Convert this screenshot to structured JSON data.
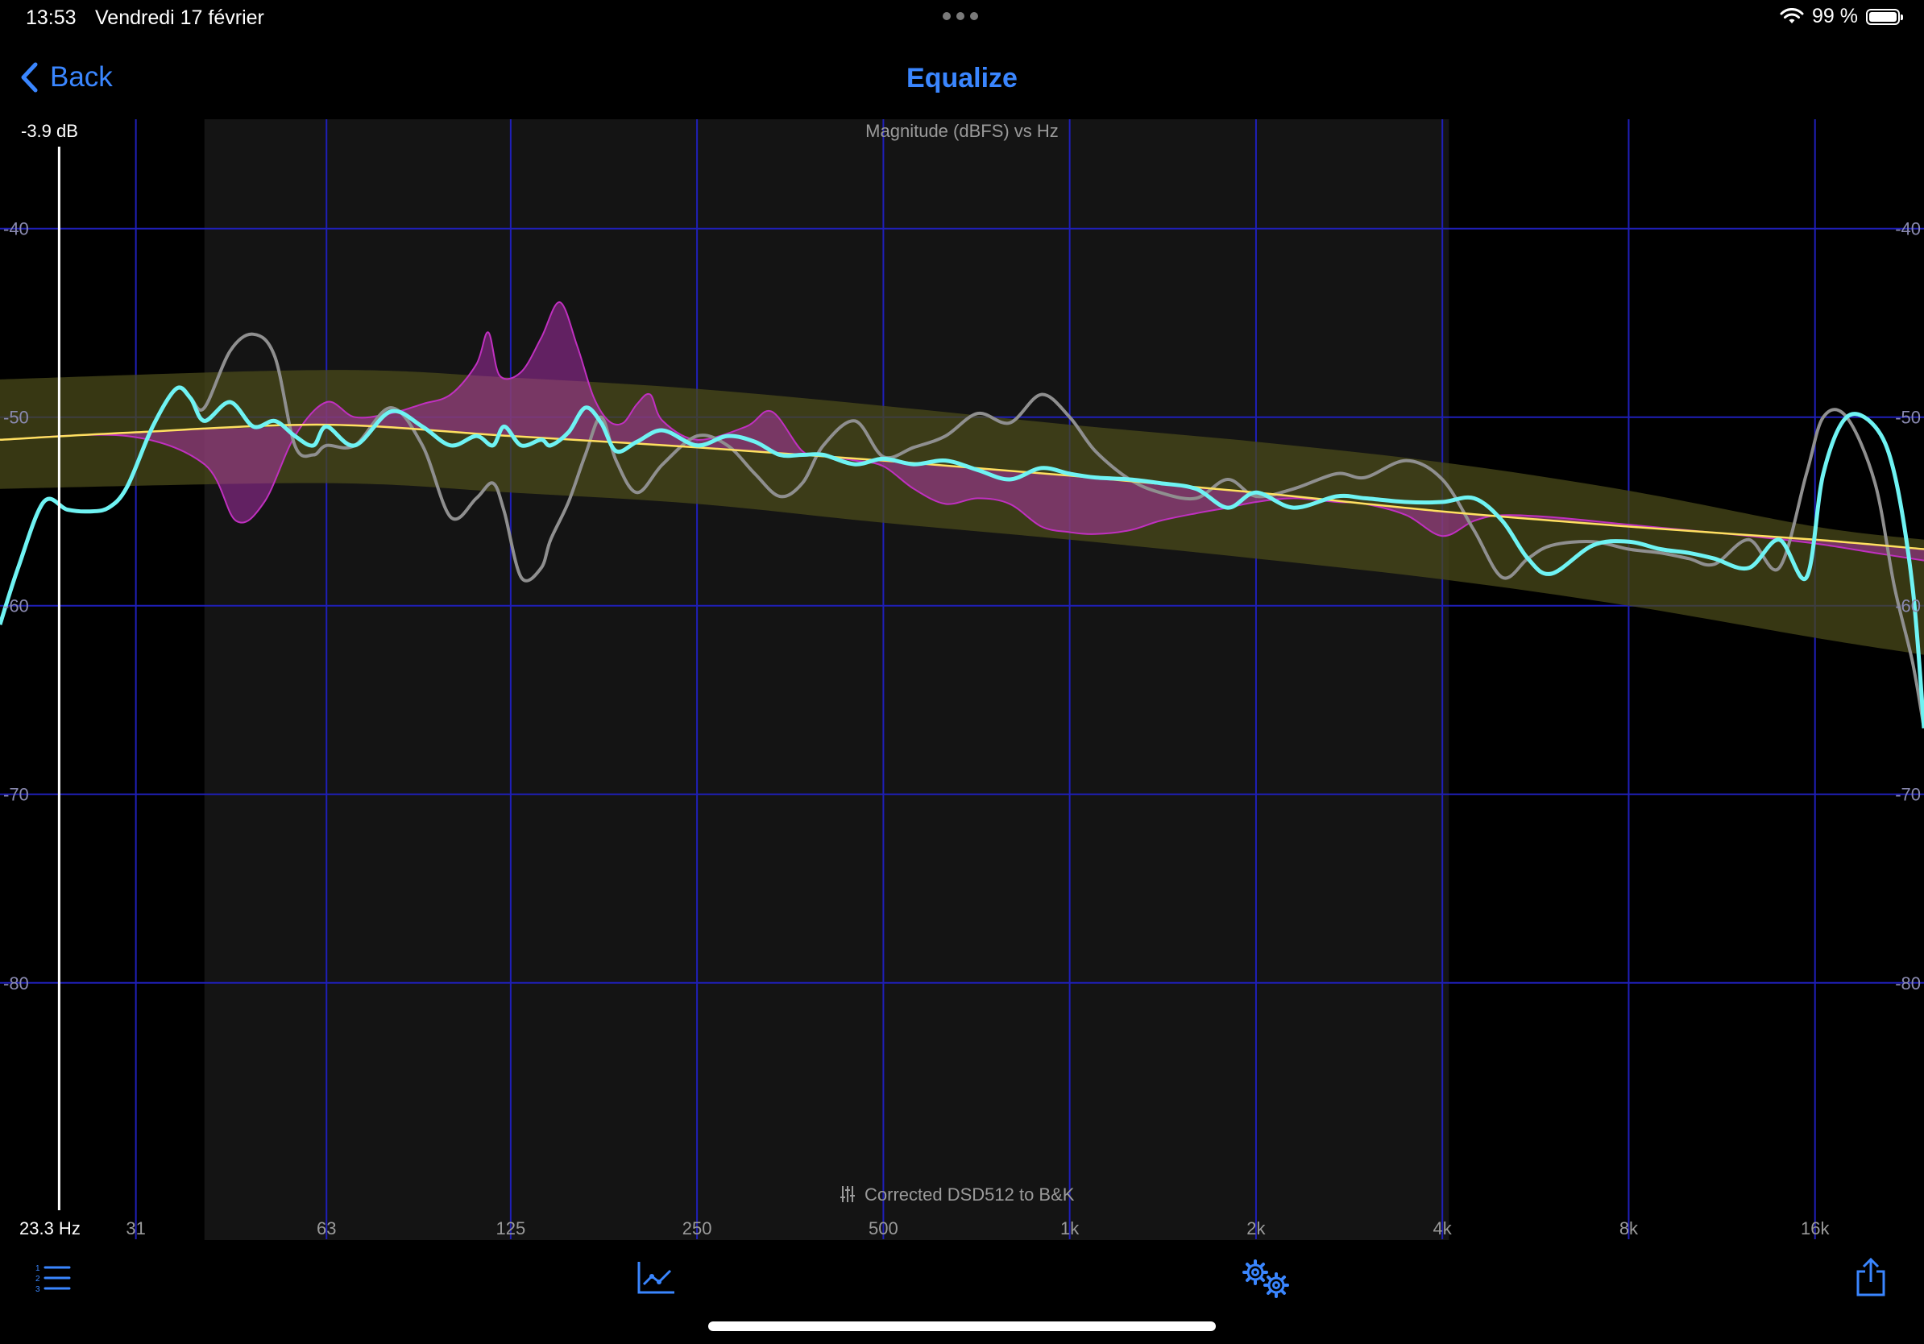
{
  "status_bar": {
    "time": "13:53",
    "date": "Vendredi 17 février",
    "battery": "99 %",
    "battery_level": 0.99
  },
  "nav": {
    "back_label": "Back",
    "title": "Equalize"
  },
  "readouts": {
    "level": "-3.9 dB",
    "frequency": "23.3 Hz"
  },
  "chart_data": {
    "type": "line",
    "title": "Magnitude (dBFS) vs Hz",
    "footer_label": "Corrected DSD512 to B&K",
    "x_scale": "log",
    "xlim": [
      18.7,
      24000
    ],
    "ylim": [
      -93.6,
      -34.2
    ],
    "x_ticks": [
      {
        "value": 31,
        "label": "31"
      },
      {
        "value": 63,
        "label": "63"
      },
      {
        "value": 125,
        "label": "125"
      },
      {
        "value": 250,
        "label": "250"
      },
      {
        "value": 500,
        "label": "500"
      },
      {
        "value": 1000,
        "label": "1k"
      },
      {
        "value": 2000,
        "label": "2k"
      },
      {
        "value": 4000,
        "label": "4k"
      },
      {
        "value": 8000,
        "label": "8k"
      },
      {
        "value": 16000,
        "label": "16k"
      }
    ],
    "y_ticks": [
      {
        "value": -40,
        "label": "-40"
      },
      {
        "value": -50,
        "label": "-50"
      },
      {
        "value": -60,
        "label": "-60"
      },
      {
        "value": -70,
        "label": "-70"
      },
      {
        "value": -80,
        "label": "-80"
      }
    ],
    "grid": true,
    "shaded_range_hz": [
      40,
      4100
    ],
    "colors": {
      "grid": "#1f1fb8",
      "measured": "#8f8f8f",
      "corrected": "#6ff3f3",
      "eq": "#c030c0",
      "target": "#ffe060",
      "tolerance": "#4a4a1a",
      "shade": "#141414",
      "axis_text": "#8a8ab0"
    },
    "tolerance_band": {
      "x": [
        18.7,
        63,
        125,
        250,
        500,
        1000,
        2000,
        4000,
        8000,
        16000,
        24000
      ],
      "upper": [
        -48.0,
        -47.5,
        -47.9,
        -48.5,
        -49.4,
        -50.4,
        -51.3,
        -52.4,
        -53.9,
        -55.8,
        -56.5
      ],
      "lower": [
        -53.8,
        -53.5,
        -54.0,
        -54.6,
        -55.6,
        -56.5,
        -57.5,
        -58.6,
        -60.0,
        -61.7,
        -62.6
      ]
    },
    "series": [
      {
        "name": "",
        "role": "eq",
        "x": [
          18.7,
          30,
          40,
          45,
          50,
          56,
          63,
          70,
          80,
          90,
          100,
          110,
          115,
          120,
          130,
          140,
          150,
          160,
          170,
          180,
          190,
          200,
          210,
          220,
          250,
          300,
          330,
          370,
          400,
          450,
          500,
          560,
          630,
          710,
          800,
          900,
          1000,
          1100,
          1250,
          1400,
          1600,
          1800,
          2000,
          2300,
          2700,
          3000,
          3500,
          4000,
          4500,
          5000,
          6000,
          8000,
          10000,
          12500,
          16000,
          20000,
          24000
        ],
        "y": [
          -51.2,
          -51.0,
          -52.5,
          -55.5,
          -54.5,
          -51.0,
          -49.2,
          -50.0,
          -49.8,
          -49.3,
          -48.8,
          -47.2,
          -45.5,
          -47.8,
          -47.6,
          -45.8,
          -43.9,
          -46.2,
          -48.9,
          -50.2,
          -50.3,
          -49.3,
          -48.8,
          -50.2,
          -51.2,
          -50.5,
          -49.7,
          -51.8,
          -52.0,
          -52.3,
          -52.6,
          -53.8,
          -54.6,
          -54.3,
          -54.6,
          -55.8,
          -56.1,
          -56.2,
          -56.0,
          -55.5,
          -55.1,
          -54.8,
          -54.5,
          -54.3,
          -54.5,
          -54.6,
          -55.2,
          -56.3,
          -55.5,
          -55.2,
          -55.3,
          -55.7,
          -56.0,
          -56.3,
          -56.7,
          -57.2,
          -57.6
        ]
      },
      {
        "name": "",
        "role": "measured",
        "x": [
          18.7,
          20,
          22,
          24,
          26,
          28,
          30,
          33,
          36,
          38,
          40,
          44,
          48,
          52,
          56,
          60,
          63,
          70,
          80,
          90,
          100,
          110,
          117,
          122,
          130,
          140,
          145,
          155,
          165,
          175,
          185,
          200,
          220,
          250,
          280,
          310,
          340,
          370,
          400,
          450,
          500,
          560,
          630,
          710,
          800,
          900,
          1000,
          1100,
          1250,
          1400,
          1600,
          1800,
          2000,
          2300,
          2700,
          3000,
          3500,
          4000,
          4500,
          5000,
          5500,
          6000,
          7000,
          8000,
          9000,
          10000,
          11000,
          12500,
          14000,
          15500,
          16500,
          18000,
          20000,
          21500,
          23000,
          24000
        ],
        "y": [
          -61.0,
          -58.0,
          -54.5,
          -54.9,
          -55.0,
          -54.8,
          -53.7,
          -50.5,
          -48.5,
          -49.0,
          -49.5,
          -46.5,
          -45.6,
          -46.8,
          -51.5,
          -52.0,
          -51.5,
          -51.5,
          -49.5,
          -51.5,
          -55.3,
          -54.3,
          -53.5,
          -55.0,
          -58.5,
          -58.0,
          -56.5,
          -54.5,
          -52.0,
          -50.0,
          -52.3,
          -54.0,
          -52.5,
          -51.0,
          -51.5,
          -53.0,
          -54.2,
          -53.5,
          -51.5,
          -50.2,
          -52.1,
          -51.6,
          -51.0,
          -49.8,
          -50.3,
          -48.8,
          -50.0,
          -51.8,
          -53.3,
          -54.0,
          -54.3,
          -53.3,
          -54.2,
          -53.8,
          -53.0,
          -53.2,
          -52.3,
          -53.3,
          -56.0,
          -58.5,
          -57.5,
          -56.8,
          -56.6,
          -57.0,
          -57.2,
          -57.5,
          -57.8,
          -56.5,
          -58.0,
          -53.0,
          -50.0,
          -50.0,
          -53.5,
          -59.0,
          -63.0,
          -66.5
        ]
      },
      {
        "name": "",
        "role": "corrected",
        "x": [
          18.7,
          20,
          22,
          24,
          26,
          28,
          30,
          33,
          36,
          38,
          40,
          44,
          48,
          52,
          56,
          60,
          63,
          70,
          80,
          90,
          100,
          110,
          117,
          122,
          130,
          140,
          145,
          155,
          165,
          175,
          185,
          200,
          220,
          250,
          280,
          310,
          340,
          370,
          400,
          450,
          500,
          560,
          630,
          710,
          800,
          900,
          1000,
          1100,
          1250,
          1400,
          1600,
          1800,
          2000,
          2300,
          2700,
          3000,
          3500,
          4000,
          4500,
          5000,
          5500,
          6000,
          7000,
          8000,
          9000,
          10000,
          11000,
          12500,
          14000,
          15500,
          16500,
          18000,
          20000,
          21500,
          23000,
          24000
        ],
        "y": [
          -61.0,
          -58.0,
          -54.5,
          -54.9,
          -55.0,
          -54.8,
          -53.7,
          -50.5,
          -48.5,
          -49.0,
          -50.2,
          -49.2,
          -50.5,
          -50.2,
          -51.0,
          -51.5,
          -50.5,
          -51.5,
          -49.7,
          -50.5,
          -51.5,
          -51.0,
          -51.5,
          -50.5,
          -51.5,
          -51.2,
          -51.5,
          -50.8,
          -49.5,
          -50.3,
          -51.8,
          -51.3,
          -50.7,
          -51.5,
          -51.0,
          -51.3,
          -52.0,
          -52.0,
          -52.0,
          -52.5,
          -52.2,
          -52.5,
          -52.3,
          -52.8,
          -53.3,
          -52.7,
          -53.0,
          -53.2,
          -53.3,
          -53.5,
          -53.8,
          -54.8,
          -54.0,
          -54.8,
          -54.2,
          -54.3,
          -54.5,
          -54.5,
          -54.3,
          -55.5,
          -57.5,
          -58.3,
          -56.8,
          -56.6,
          -57.0,
          -57.2,
          -57.5,
          -58.0,
          -56.5,
          -58.5,
          -53.0,
          -50.0,
          -50.5,
          -53.0,
          -59.0,
          -66.5
        ]
      },
      {
        "name": "",
        "role": "target",
        "x": [
          18.7,
          31,
          63,
          125,
          250,
          500,
          1000,
          2000,
          4000,
          8000,
          16000,
          24000
        ],
        "y": [
          -51.2,
          -50.8,
          -50.4,
          -51.0,
          -51.6,
          -52.3,
          -53.1,
          -54.0,
          -55.0,
          -55.8,
          -56.5,
          -57.0
        ]
      }
    ],
    "cursor": {
      "x": 23.3
    }
  },
  "tab_bar": {
    "items": [
      {
        "name": "list-numbered-icon"
      },
      {
        "name": "chart-line-icon"
      },
      {
        "name": "gears-icon"
      },
      {
        "name": "share-icon"
      }
    ]
  }
}
